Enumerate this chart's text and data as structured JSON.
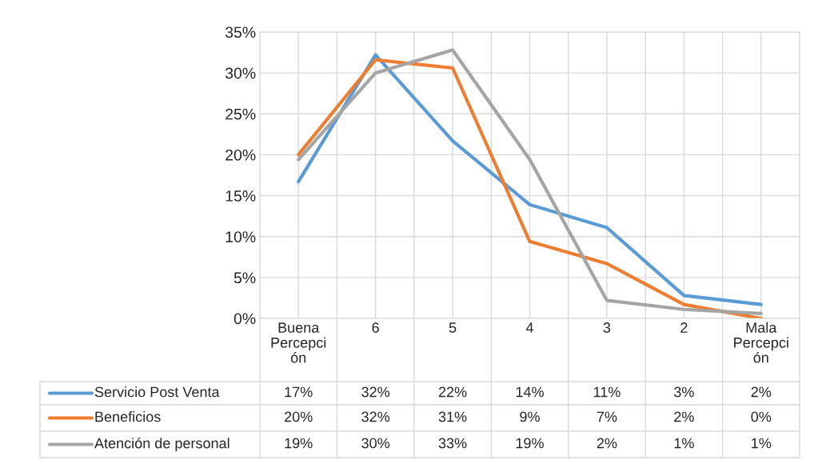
{
  "chart_data": {
    "type": "line",
    "categories": [
      "Buena\nPercepci\nón",
      "6",
      "5",
      "4",
      "3",
      "2",
      "Mala\nPercepci\nón"
    ],
    "series": [
      {
        "name": "Servicio Post Venta",
        "color": "#5b9bd5",
        "values": [
          16.7,
          32.2,
          21.7,
          13.9,
          11.1,
          2.8,
          1.7
        ],
        "value_labels": [
          "17%",
          "32%",
          "22%",
          "14%",
          "11%",
          "3%",
          "2%"
        ]
      },
      {
        "name": "Beneficios",
        "color": "#ed7d31",
        "values": [
          20,
          31.6,
          30.6,
          9.4,
          6.7,
          1.7,
          0
        ],
        "value_labels": [
          "20%",
          "32%",
          "31%",
          "9%",
          "7%",
          "2%",
          "0%"
        ]
      },
      {
        "name": "Atención de personal",
        "color": "#a5a5a5",
        "values": [
          19.4,
          30,
          32.8,
          19.4,
          2.2,
          1.1,
          0.6
        ],
        "value_labels": [
          "19%",
          "30%",
          "33%",
          "19%",
          "2%",
          "1%",
          "1%"
        ]
      }
    ],
    "ylim": [
      0,
      35
    ],
    "yticks": [
      {
        "value": 0,
        "label": "0%"
      },
      {
        "value": 5,
        "label": "5%"
      },
      {
        "value": 10,
        "label": "10%"
      },
      {
        "value": 15,
        "label": "15%"
      },
      {
        "value": 20,
        "label": "20%"
      },
      {
        "value": 25,
        "label": "25%"
      },
      {
        "value": 30,
        "label": "30%"
      },
      {
        "value": 35,
        "label": "35%"
      }
    ],
    "grid": true,
    "legend": "bottom left",
    "marker": "none",
    "line_style": "solid"
  }
}
